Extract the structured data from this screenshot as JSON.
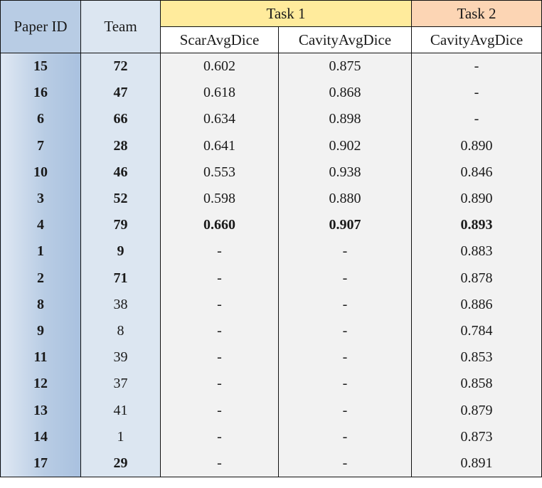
{
  "headers": {
    "paper_id": "Paper ID",
    "team": "Team",
    "task1": "Task 1",
    "task2": "Task 2",
    "scar_avg_dice": "ScarAvgDice",
    "cavity_avg_dice_t1": "CavityAvgDice",
    "cavity_avg_dice_t2": "CavityAvgDice"
  },
  "colors": {
    "paper_column": "#b8cce4",
    "team_column": "#dce6f1",
    "task1_header": "#ffeb9c",
    "task2_header": "#fcd5b4",
    "value_cells": "#f2f2f2"
  },
  "rows": [
    {
      "paper": "15",
      "team": "72",
      "scar": "0.602",
      "cav1": "0.875",
      "cav2": "-",
      "team_bold": true,
      "bold_values": false
    },
    {
      "paper": "16",
      "team": "47",
      "scar": "0.618",
      "cav1": "0.868",
      "cav2": "-",
      "team_bold": true,
      "bold_values": false
    },
    {
      "paper": "6",
      "team": "66",
      "scar": "0.634",
      "cav1": "0.898",
      "cav2": "-",
      "team_bold": true,
      "bold_values": false
    },
    {
      "paper": "7",
      "team": "28",
      "scar": "0.641",
      "cav1": "0.902",
      "cav2": "0.890",
      "team_bold": true,
      "bold_values": false
    },
    {
      "paper": "10",
      "team": "46",
      "scar": "0.553",
      "cav1": "0.938",
      "cav2": "0.846",
      "team_bold": true,
      "bold_values": false
    },
    {
      "paper": "3",
      "team": "52",
      "scar": "0.598",
      "cav1": "0.880",
      "cav2": "0.890",
      "team_bold": true,
      "bold_values": false
    },
    {
      "paper": "4",
      "team": "79",
      "scar": "0.660",
      "cav1": "0.907",
      "cav2": "0.893",
      "team_bold": true,
      "bold_values": true
    },
    {
      "paper": "1",
      "team": "9",
      "scar": "-",
      "cav1": "-",
      "cav2": "0.883",
      "team_bold": true,
      "bold_values": false
    },
    {
      "paper": "2",
      "team": "71",
      "scar": "-",
      "cav1": "-",
      "cav2": "0.878",
      "team_bold": true,
      "bold_values": false
    },
    {
      "paper": "8",
      "team": "38",
      "scar": "-",
      "cav1": "-",
      "cav2": "0.886",
      "team_bold": false,
      "bold_values": false
    },
    {
      "paper": "9",
      "team": "8",
      "scar": "-",
      "cav1": "-",
      "cav2": "0.784",
      "team_bold": false,
      "bold_values": false
    },
    {
      "paper": "11",
      "team": "39",
      "scar": "-",
      "cav1": "-",
      "cav2": "0.853",
      "team_bold": false,
      "bold_values": false
    },
    {
      "paper": "12",
      "team": "37",
      "scar": "-",
      "cav1": "-",
      "cav2": "0.858",
      "team_bold": false,
      "bold_values": false
    },
    {
      "paper": "13",
      "team": "41",
      "scar": "-",
      "cav1": "-",
      "cav2": "0.879",
      "team_bold": false,
      "bold_values": false
    },
    {
      "paper": "14",
      "team": "1",
      "scar": "-",
      "cav1": "-",
      "cav2": "0.873",
      "team_bold": false,
      "bold_values": false
    },
    {
      "paper": "17",
      "team": "29",
      "scar": "-",
      "cav1": "-",
      "cav2": "0.891",
      "team_bold": true,
      "bold_values": false
    }
  ]
}
